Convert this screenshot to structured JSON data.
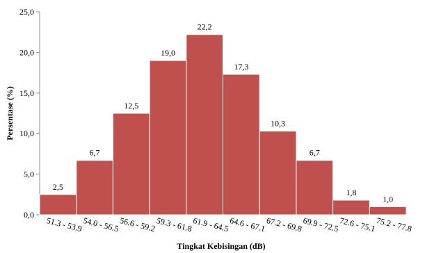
{
  "chart_data": {
    "type": "bar",
    "title": "",
    "xlabel": "Tingkat Kebisingan (dB)",
    "ylabel": "Persentase (%)",
    "ylim": [
      0,
      25
    ],
    "yticks": [
      "0,0",
      "5,0",
      "10,0",
      "15,0",
      "20,0",
      "25,0"
    ],
    "categories": [
      "51.3 - 53.9",
      "54.0 - 56.5",
      "56.6 - 59.2",
      "59.3 - 61.8",
      "61.9 - 64.5",
      "64.6 - 67.1",
      "67.2 - 69.8",
      "69.9 - 72.5",
      "72.6 - 75.1",
      "75.2 - 77.8"
    ],
    "values": [
      2.5,
      6.7,
      12.5,
      19.0,
      22.2,
      17.3,
      10.3,
      6.7,
      1.8,
      1.0
    ],
    "value_labels": [
      "2,5",
      "6,7",
      "12,5",
      "19,0",
      "22,2",
      "17,3",
      "10,3",
      "6,7",
      "1,8",
      "1,0"
    ],
    "grid": false,
    "legend": "none",
    "colors": {
      "bar": "#c0504d",
      "bar_edge": "#ffffff",
      "axis": "#8c8c8c"
    }
  }
}
